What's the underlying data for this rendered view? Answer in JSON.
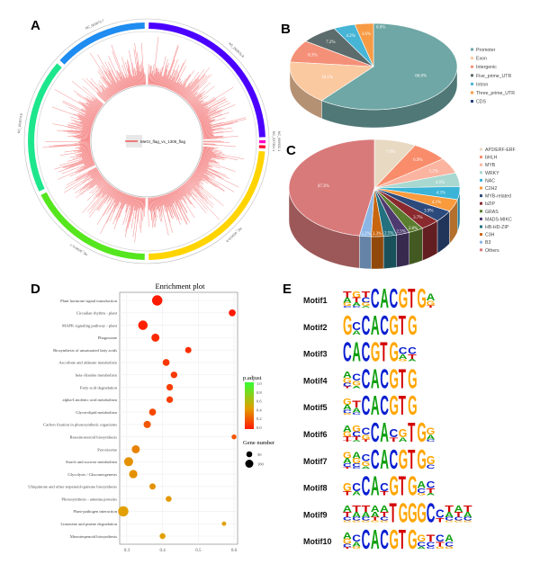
{
  "panels": {
    "a": "A",
    "b": "B",
    "c": "C",
    "d": "D",
    "e": "E"
  },
  "chart_data": [
    {
      "type": "circos",
      "legend": "MeGI_flag_vs_1306_flag",
      "track_color": "#f26b6b",
      "chromosomes": [
        {
          "name": "NC_003076.8",
          "color": "#4b00ff"
        },
        {
          "name": "NC_037304.1",
          "color": "#ff00c8"
        },
        {
          "name": "NC_000932.1",
          "color": "#ff0033"
        },
        {
          "name": "NC_003070.9",
          "color": "#ffd400"
        },
        {
          "name": "NC_003071.7",
          "color": "#55e61e"
        },
        {
          "name": "NC_003074.8",
          "color": "#1ee68c"
        },
        {
          "name": "NC_003075.7",
          "color": "#1e8cf0"
        }
      ]
    },
    {
      "type": "pie",
      "categories": [
        "Promoter",
        "Exon",
        "Intergenic",
        "Five_prime_UTR",
        "Intron",
        "Three_prime_UTR",
        "CDS"
      ],
      "values": [
        60.6,
        16.1,
        8.3,
        7.2,
        4.2,
        3.6,
        0.0
      ],
      "labels": [
        "60.6%",
        "16.1%",
        "8.3%",
        "7.2%",
        "4.2%",
        "3.6%",
        "0.0%"
      ],
      "colors": [
        "#6ea7a5",
        "#fbc9a0",
        "#f59078",
        "#5c6b6b",
        "#47b5d6",
        "#f89b45",
        "#1f3f7a"
      ],
      "legend": "right"
    },
    {
      "type": "pie",
      "categories": [
        "AP2/ERF-ERF",
        "bHLH",
        "MYB",
        "WRKY",
        "NAC",
        "C2H2",
        "MYB-related",
        "bZIP",
        "GRAS",
        "MADS-MIKC",
        "HB-HD-ZIP",
        "C3H",
        "B3",
        "Others"
      ],
      "values": [
        7.9,
        6.9,
        5.2,
        4.6,
        4.3,
        4.1,
        3.9,
        3.7,
        2.8,
        2.5,
        2.5,
        2.3,
        2.2,
        47.3
      ],
      "labels": [
        "7.9%",
        "6.9%",
        "5.2%",
        "4.6%",
        "4.3%",
        "4.1%",
        "3.9%",
        "3.7%",
        "2.8%",
        "2.5%",
        "2.5%",
        "2.3%",
        "2.2%",
        "47.3%"
      ],
      "colors": [
        "#e8d9c2",
        "#f98d6b",
        "#fbb4a0",
        "#a9d8d0",
        "#3bb4d8",
        "#f99a3c",
        "#2c4a7c",
        "#8a2a2e",
        "#5b7d2e",
        "#4e3a6e",
        "#23717f",
        "#c8650f",
        "#8bb6e6",
        "#d97a7a"
      ],
      "legend": "right"
    },
    {
      "type": "scatter",
      "title": "Enrichment plot",
      "xlim": [
        0.28,
        0.61
      ],
      "xticks": [
        "0.3",
        "0.4",
        "0.5",
        "0.6"
      ],
      "xtick_values": [
        0.3,
        0.4,
        0.5,
        0.6
      ],
      "grid": true,
      "color_legend": {
        "title": "p.adjust",
        "ticks": [
          "1.0",
          "0.8",
          "0.6",
          "0.4",
          "0.2",
          "0.0"
        ],
        "low_color": "#ff1a00",
        "mid_color": "#e8a000",
        "high_color": "#33ff33"
      },
      "size_legend": {
        "title": "Gene number",
        "ticks": [
          "50",
          "100"
        ]
      },
      "terms": [
        {
          "name": "Plant hormone signal transduction",
          "x": 0.385,
          "count": 110,
          "padj": 0.0
        },
        {
          "name": "Circadian rhythm - plant",
          "x": 0.595,
          "count": 40,
          "padj": 0.0
        },
        {
          "name": "MAPK signaling pathway - plant",
          "x": 0.345,
          "count": 90,
          "padj": 0.02
        },
        {
          "name": "Phagosome",
          "x": 0.38,
          "count": 60,
          "padj": 0.05
        },
        {
          "name": "Biosynthesis of unsaturated fatty acids",
          "x": 0.472,
          "count": 30,
          "padj": 0.06
        },
        {
          "name": "Ascorbate and aldarate metabolism",
          "x": 0.41,
          "count": 40,
          "padj": 0.1
        },
        {
          "name": "beta-Alanine metabolism",
          "x": 0.432,
          "count": 35,
          "padj": 0.1
        },
        {
          "name": "Fatty acid degradation",
          "x": 0.42,
          "count": 35,
          "padj": 0.12
        },
        {
          "name": "alpha-Linolenic acid metabolism",
          "x": 0.42,
          "count": 35,
          "padj": 0.12
        },
        {
          "name": "Glycerolipid metabolism",
          "x": 0.372,
          "count": 40,
          "padj": 0.15
        },
        {
          "name": "Carbon fixation in photosynthetic organisms",
          "x": 0.357,
          "count": 45,
          "padj": 0.2
        },
        {
          "name": "Brassinosteroid biosynthesis",
          "x": 0.6,
          "count": 15,
          "padj": 0.2
        },
        {
          "name": "Peroxisome",
          "x": 0.325,
          "count": 60,
          "padj": 0.35
        },
        {
          "name": "Starch and sucrose metabolism",
          "x": 0.305,
          "count": 80,
          "padj": 0.4
        },
        {
          "name": "Glycolysis / Gluconeogenesis",
          "x": 0.318,
          "count": 65,
          "padj": 0.4
        },
        {
          "name": "Ubiquinone and other terpenoid-quinone biosynthesis",
          "x": 0.372,
          "count": 30,
          "padj": 0.4
        },
        {
          "name": "Photosynthesis - antenna proteins",
          "x": 0.417,
          "count": 25,
          "padj": 0.42
        },
        {
          "name": "Plant-pathogen interaction",
          "x": 0.29,
          "count": 110,
          "padj": 0.45
        },
        {
          "name": "Limonene and pinene degradation",
          "x": 0.572,
          "count": 10,
          "padj": 0.45
        },
        {
          "name": "Monoterpenoid biosynthesis",
          "x": 0.4,
          "count": 25,
          "padj": 0.45
        }
      ]
    },
    {
      "type": "sequence-logo",
      "letter_colors": {
        "A": "#10a010",
        "C": "#0a1ed0",
        "G": "#ffa600",
        "T": "#d40000"
      },
      "motifs": [
        {
          "name": "Motif1",
          "positions": [
            "TAGC",
            "GTAC",
            "TCGA",
            "C",
            "A",
            "C",
            "G",
            "T",
            "G",
            "AGT"
          ]
        },
        {
          "name": "Motif2",
          "positions": [
            "G",
            "CA",
            "C",
            "A",
            "C",
            "G",
            "T",
            "G"
          ]
        },
        {
          "name": "Motif3",
          "positions": [
            "C",
            "A",
            "C",
            "G",
            "T",
            "G",
            "CAG",
            "CTA"
          ]
        },
        {
          "name": "Motif4",
          "positions": [
            "AGCT",
            "CGA",
            "C",
            "A",
            "C",
            "G",
            "T",
            "G"
          ]
        },
        {
          "name": "Motif5",
          "positions": [
            "GACG",
            "TAC",
            "C",
            "A",
            "C",
            "G",
            "T",
            "G"
          ]
        },
        {
          "name": "Motif6",
          "positions": [
            "AGTT",
            "GCTA",
            "CGT",
            "C",
            "A",
            "CT",
            "GA",
            "T",
            "G",
            "GAC"
          ]
        },
        {
          "name": "Motif7",
          "positions": [
            "GACT",
            "AGCC",
            "CGA",
            "C",
            "A",
            "C",
            "G",
            "T",
            "G",
            "GC"
          ]
        },
        {
          "name": "Motif8",
          "positions": [
            "GT",
            "CA",
            "C",
            "A",
            "CT",
            "G",
            "T",
            "G",
            "ACG",
            "CTA"
          ]
        },
        {
          "name": "Motif9",
          "positions": [
            "ATCG",
            "TACG",
            "TACG",
            "AATG",
            "ATCG",
            "T",
            "G",
            "G",
            "G",
            "C",
            "CT",
            "TACG",
            "ATCG",
            "TACG"
          ]
        },
        {
          "name": "Motif10",
          "positions": [
            "AGCT",
            "CAG",
            "C",
            "A",
            "C",
            "G",
            "T",
            "G",
            "GCA",
            "TCC",
            "CTG",
            "ACG"
          ]
        }
      ]
    }
  ]
}
